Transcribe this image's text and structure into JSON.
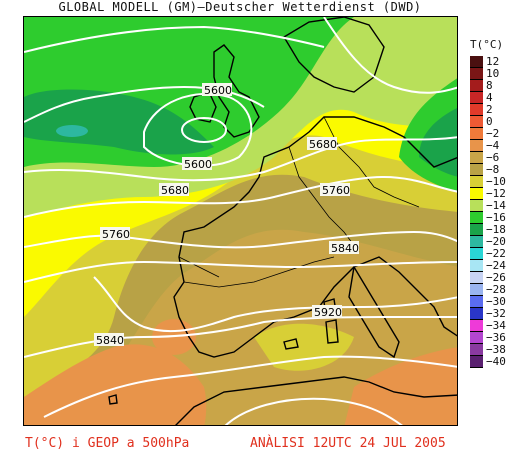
{
  "header": {
    "title": "GLOBAL MODELL (GM)–Deutscher Wetterdienst (DWD)"
  },
  "legend": {
    "title": "T(°C)",
    "items": [
      {
        "label": "12",
        "color": "#4a1010"
      },
      {
        "label": "10",
        "color": "#7a1616"
      },
      {
        "label": "8",
        "color": "#a41c1c"
      },
      {
        "label": "4",
        "color": "#c82626"
      },
      {
        "label": "2",
        "color": "#e03a2a"
      },
      {
        "label": "0",
        "color": "#ee5a34"
      },
      {
        "label": "−2",
        "color": "#f07a3a"
      },
      {
        "label": "−4",
        "color": "#e8944a"
      },
      {
        "label": "−6",
        "color": "#c9a548"
      },
      {
        "label": "−8",
        "color": "#b8a246"
      },
      {
        "label": "−10",
        "color": "#d8cf36"
      },
      {
        "label": "−12",
        "color": "#fafa00"
      },
      {
        "label": "−14",
        "color": "#b8e05a"
      },
      {
        "label": "−16",
        "color": "#2ecc2e"
      },
      {
        "label": "−18",
        "color": "#1aa34a"
      },
      {
        "label": "−20",
        "color": "#2db8a0"
      },
      {
        "label": "−22",
        "color": "#2ad6d6"
      },
      {
        "label": "−24",
        "color": "#a8e6f4"
      },
      {
        "label": "−26",
        "color": "#c8d4f4"
      },
      {
        "label": "−28",
        "color": "#9ab4f0"
      },
      {
        "label": "−30",
        "color": "#5a6cf0"
      },
      {
        "label": "−32",
        "color": "#2a36c8"
      },
      {
        "label": "−34",
        "color": "#ee3ad8"
      },
      {
        "label": "−36",
        "color": "#b446d0"
      },
      {
        "label": "−38",
        "color": "#8a3aa0"
      },
      {
        "label": "−40",
        "color": "#5a2070"
      }
    ]
  },
  "contours": {
    "labels": [
      "5600",
      "5600",
      "5680",
      "5680",
      "5760",
      "5760",
      "5840",
      "5840",
      "5920"
    ]
  },
  "footer": {
    "left": "T(°C) i GEOP a 500hPa",
    "right": "ANÀLISI 12UTC 24 JUL 2005"
  }
}
